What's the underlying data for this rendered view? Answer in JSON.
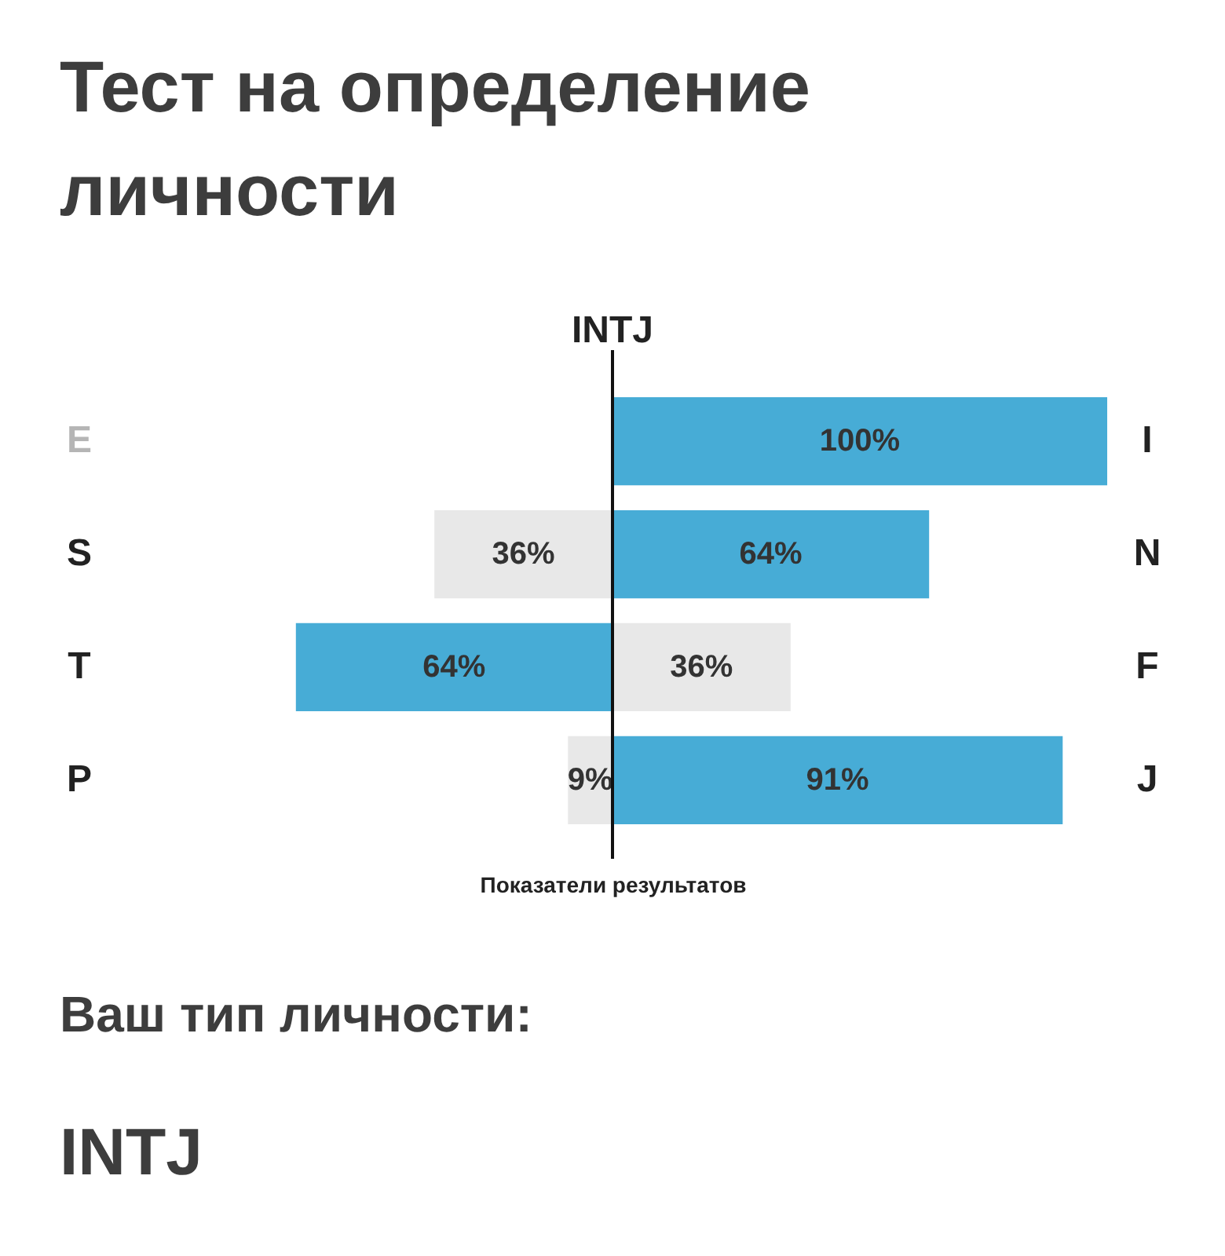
{
  "chart_data": [
    {
      "type": "bar",
      "orientation": "horizontal",
      "title": "Тест на определение личности",
      "categories": [
        "E",
        "S",
        "T",
        "P"
      ],
      "colors": [
        "#e8e8e8",
        "#e8e8e8",
        "#47acd6",
        "#e8e8e8"
      ],
      "values": [
        0,
        36,
        64,
        9
      ],
      "value_labels": [
        null,
        "36%",
        "64%",
        "9%"
      ],
      "tick_labels": "y",
      "annotations": [
        "Ваш тип личности:",
        "INTJ"
      ]
    },
    {
      "type": "bar",
      "orientation": "horizontal",
      "xlabel": "Показатели результатов",
      "categories": [
        "I",
        "N",
        "F",
        "J"
      ],
      "xlim": [
        0,
        100
      ],
      "colors": [
        "#47acd6",
        "#47acd6",
        "#e8e8e8",
        "#47acd6"
      ],
      "values": [
        100,
        64,
        36,
        91
      ],
      "value_labels": [
        "100%",
        "64%",
        "36%",
        "91%"
      ],
      "ref_lines": [
        {
          "axis": "x",
          "value": 0,
          "label": "INTJ"
        }
      ],
      "tick_labels": "y"
    }
  ]
}
